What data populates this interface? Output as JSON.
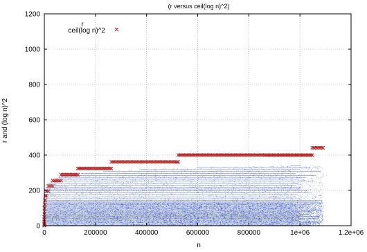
{
  "chart_data": {
    "type": "scatter",
    "title": "(r versus ceil(log n)^2)",
    "xlabel": "n",
    "ylabel": "r and (log n)^2",
    "xlim": [
      0,
      1200000
    ],
    "ylim": [
      0,
      1200
    ],
    "xticks": [
      0,
      200000,
      400000,
      600000,
      800000,
      1000000,
      1200000
    ],
    "xtick_labels": [
      "0",
      "200000",
      "400000",
      "600000",
      "800000",
      "1e+06",
      "1.2e+06"
    ],
    "yticks": [
      0,
      200,
      400,
      600,
      800,
      1000,
      1200
    ],
    "ytick_labels": [
      "0",
      "200",
      "400",
      "600",
      "800",
      "1000",
      "1200"
    ],
    "grid": true,
    "legend_placement": "top-left",
    "series": [
      {
        "name": "r",
        "color": "#1f3fb4",
        "marker": "dot",
        "x_range": [
          0,
          1090000
        ],
        "y_envelope_max": 440,
        "y_dense_max": 130
      },
      {
        "name": "ceil(log n)^2",
        "color": "#b22222",
        "marker": "x",
        "steps": [
          {
            "x_start": 0,
            "x_end": 1,
            "y": 0
          },
          {
            "x_start": 2,
            "x_end": 3,
            "y": 4
          },
          {
            "x_start": 4,
            "x_end": 7,
            "y": 9
          },
          {
            "x_start": 8,
            "x_end": 15,
            "y": 16
          },
          {
            "x_start": 16,
            "x_end": 31,
            "y": 25
          },
          {
            "x_start": 32,
            "x_end": 63,
            "y": 36
          },
          {
            "x_start": 64,
            "x_end": 127,
            "y": 49
          },
          {
            "x_start": 128,
            "x_end": 255,
            "y": 64
          },
          {
            "x_start": 256,
            "x_end": 511,
            "y": 81
          },
          {
            "x_start": 512,
            "x_end": 1023,
            "y": 100
          },
          {
            "x_start": 1024,
            "x_end": 2047,
            "y": 121
          },
          {
            "x_start": 2048,
            "x_end": 4095,
            "y": 144
          },
          {
            "x_start": 4096,
            "x_end": 8191,
            "y": 169
          },
          {
            "x_start": 8192,
            "x_end": 16383,
            "y": 196
          },
          {
            "x_start": 16384,
            "x_end": 32767,
            "y": 225
          },
          {
            "x_start": 32768,
            "x_end": 65535,
            "y": 256
          },
          {
            "x_start": 65536,
            "x_end": 131071,
            "y": 289
          },
          {
            "x_start": 131072,
            "x_end": 262143,
            "y": 324
          },
          {
            "x_start": 262144,
            "x_end": 524287,
            "y": 361
          },
          {
            "x_start": 524288,
            "x_end": 1048575,
            "y": 400
          },
          {
            "x_start": 1048576,
            "x_end": 1090000,
            "y": 441
          }
        ]
      }
    ]
  }
}
